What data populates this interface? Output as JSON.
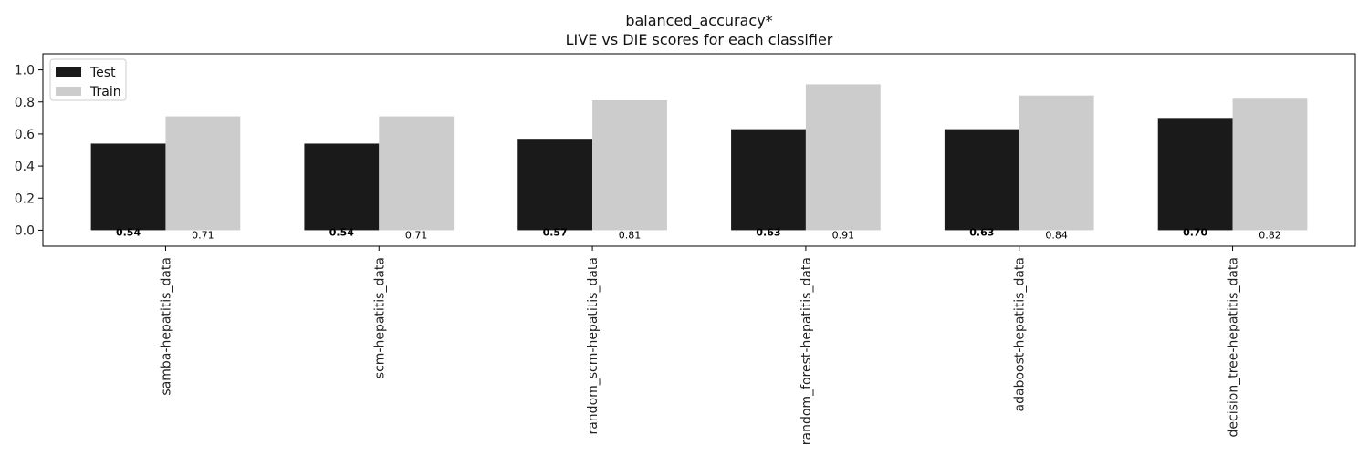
{
  "chart_data": {
    "type": "bar",
    "title": "balanced_accuracy*",
    "subtitle": "LIVE vs DIE scores for each classifier",
    "xlabel": "",
    "ylabel": "",
    "ylim": [
      -0.1,
      1.1
    ],
    "yticks": [
      "0.0",
      "0.2",
      "0.4",
      "0.6",
      "0.8",
      "1.0"
    ],
    "categories": [
      "samba-hepatitis_data",
      "scm-hepatitis_data",
      "random_scm-hepatitis_data",
      "random_forest-hepatitis_data",
      "adaboost-hepatitis_data",
      "decision_tree-hepatitis_data"
    ],
    "series": [
      {
        "name": "Test",
        "color": "#1a1a1a",
        "values": [
          0.54,
          0.54,
          0.57,
          0.63,
          0.63,
          0.7
        ],
        "labels": [
          "0.54",
          "0.54",
          "0.57",
          "0.63",
          "0.63",
          "0.70"
        ]
      },
      {
        "name": "Train",
        "color": "#cccccc",
        "values": [
          0.71,
          0.71,
          0.81,
          0.91,
          0.84,
          0.82
        ],
        "labels": [
          "0.71",
          "0.71",
          "0.81",
          "0.91",
          "0.84",
          "0.82"
        ]
      }
    ],
    "grid": false,
    "legend_position": "top-left"
  }
}
